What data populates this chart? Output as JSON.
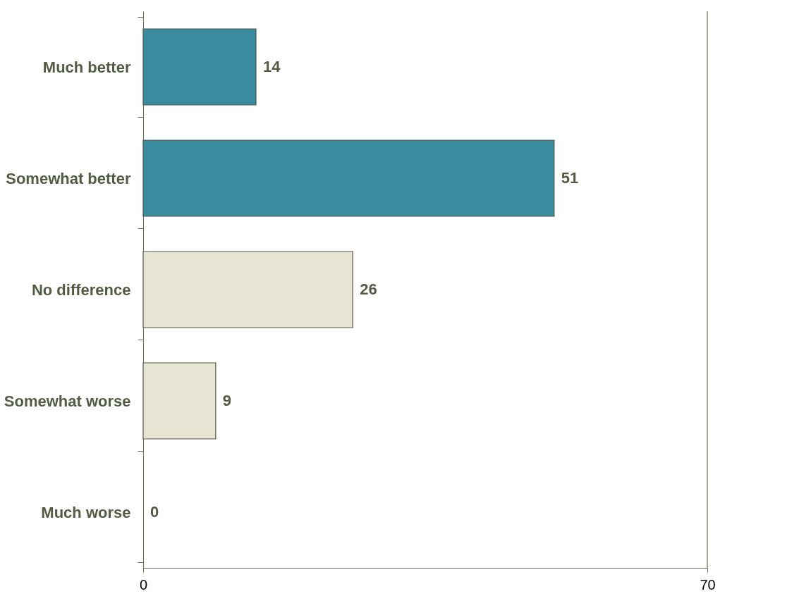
{
  "chart_data": {
    "type": "bar",
    "orientation": "horizontal",
    "categories": [
      "Much  better",
      "Somewhat better",
      "No difference",
      "Somewhat worse",
      "Much worse"
    ],
    "values": [
      14,
      51,
      26,
      9,
      0
    ],
    "colors": [
      "#3b8b9f",
      "#3b8b9f",
      "#e6e4d3",
      "#e6e4d3",
      "#e6e4d3"
    ],
    "xlim": [
      0,
      70
    ],
    "xticks": [
      0,
      70
    ],
    "data_labels": true,
    "grid": false
  }
}
